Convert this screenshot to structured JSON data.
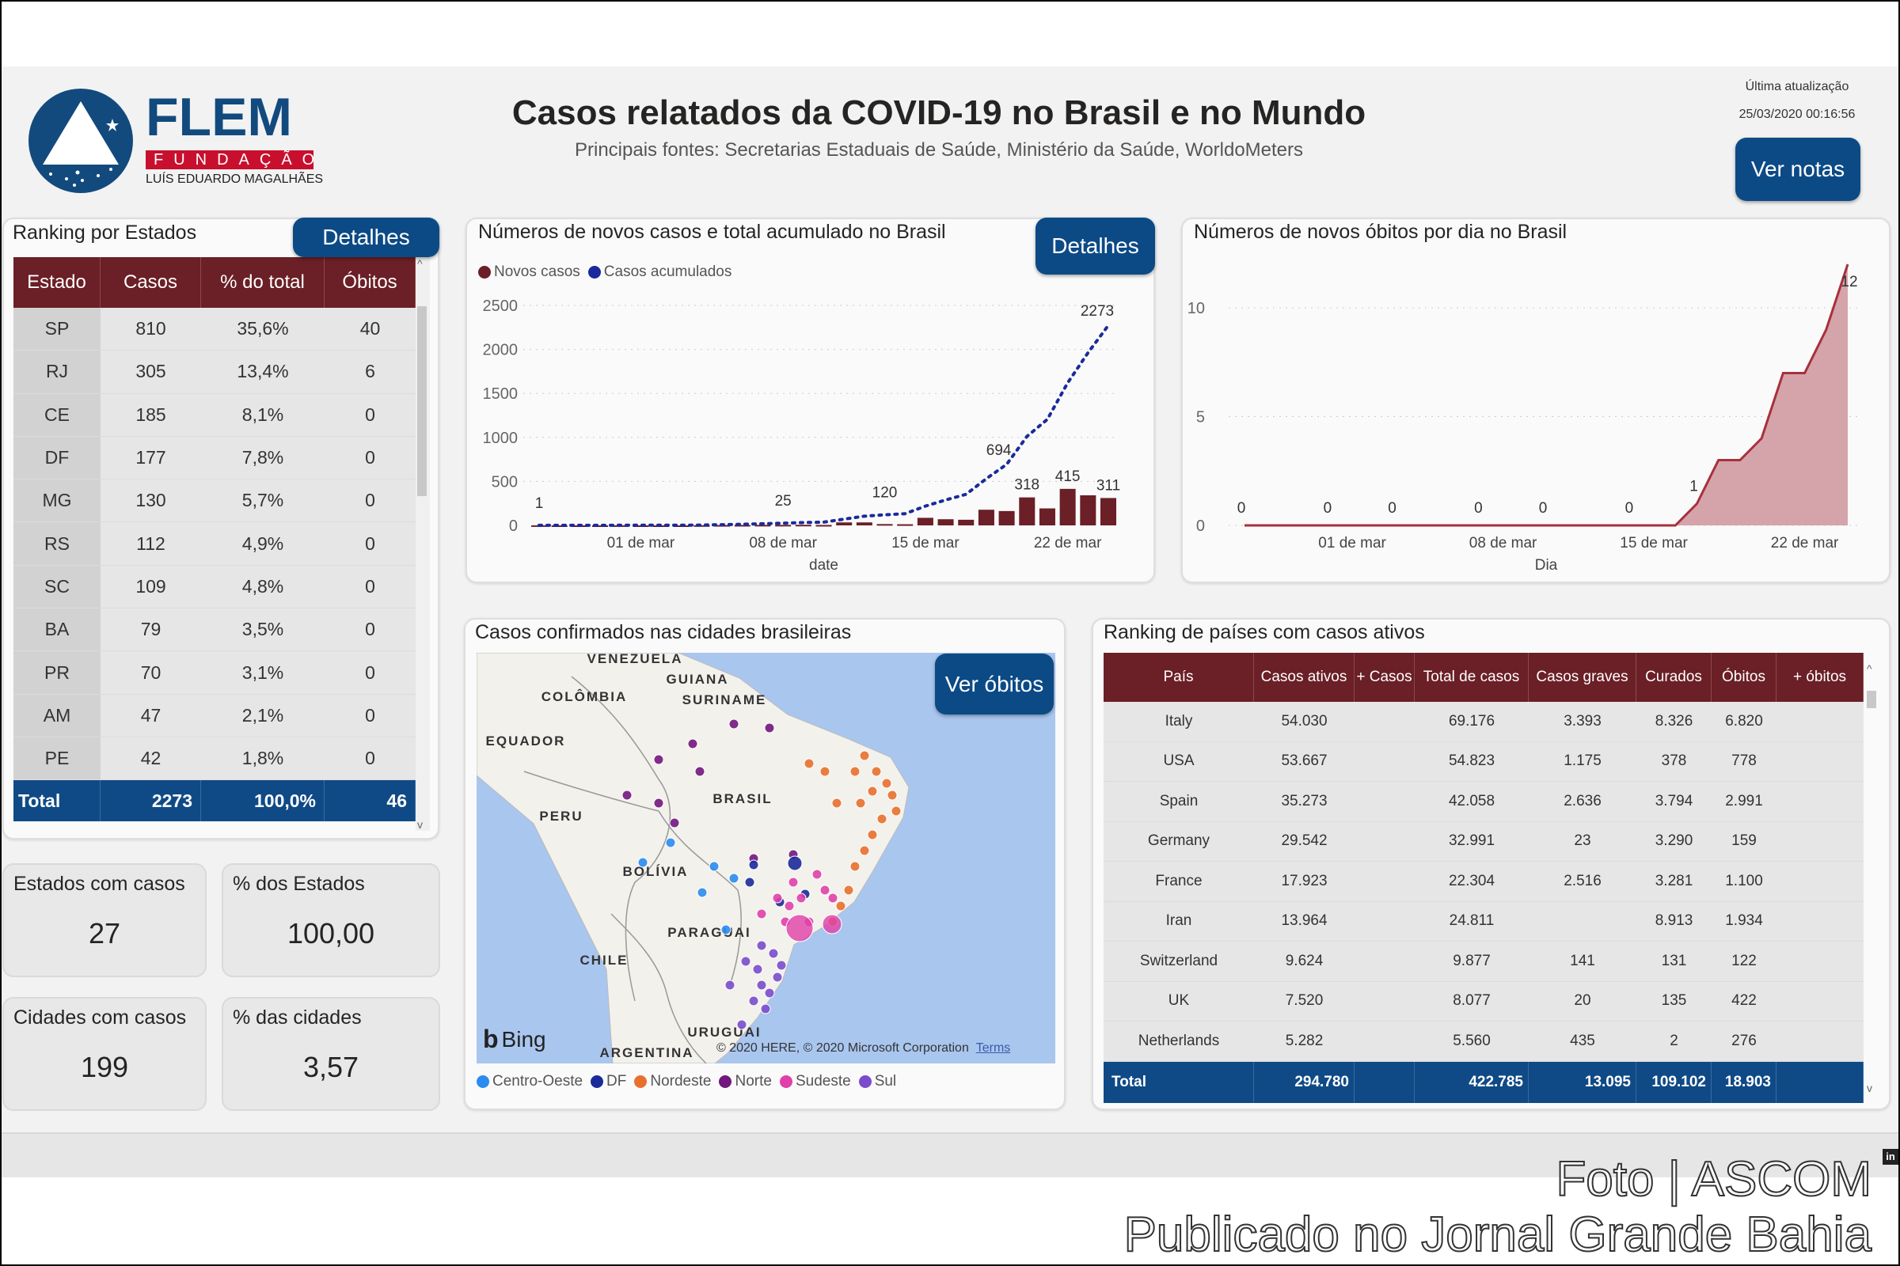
{
  "header": {
    "logo": {
      "name": "FLEM",
      "sub1": "FUNDAÇÃO",
      "sub2": "LUÍS EDUARDO MAGALHÃES"
    },
    "title": "Casos relatados da COVID-19 no Brasil e no Mundo",
    "subtitle": "Principais fontes: Secretarias Estaduais de Saúde, Ministério da Saúde, WorldoMeters",
    "last_update_label": "Última atualização",
    "last_update_value": "25/03/2020 00:16:56",
    "notes_button": "Ver notas"
  },
  "colors": {
    "header_red": "#6b1f26",
    "navy": "#0f4a86",
    "bar": "#6b1f26",
    "line": "#1a2a9c",
    "area": "#d4a4aa"
  },
  "states": {
    "title": "Ranking por Estados",
    "details_button": "Detalhes",
    "columns": [
      "Estado",
      "Casos",
      "% do total",
      "Óbitos"
    ],
    "rows": [
      [
        "SP",
        "810",
        "35,6%",
        "40"
      ],
      [
        "RJ",
        "305",
        "13,4%",
        "6"
      ],
      [
        "CE",
        "185",
        "8,1%",
        "0"
      ],
      [
        "DF",
        "177",
        "7,8%",
        "0"
      ],
      [
        "MG",
        "130",
        "5,7%",
        "0"
      ],
      [
        "RS",
        "112",
        "4,9%",
        "0"
      ],
      [
        "SC",
        "109",
        "4,8%",
        "0"
      ],
      [
        "BA",
        "79",
        "3,5%",
        "0"
      ],
      [
        "PR",
        "70",
        "3,1%",
        "0"
      ],
      [
        "AM",
        "47",
        "2,1%",
        "0"
      ],
      [
        "PE",
        "42",
        "1,8%",
        "0"
      ]
    ],
    "total": [
      "Total",
      "2273",
      "100,0%",
      "46"
    ]
  },
  "kpis": [
    {
      "label": "Estados com casos",
      "value": "27"
    },
    {
      "label": "% dos Estados",
      "value": "100,00"
    },
    {
      "label": "Cidades com casos",
      "value": "199"
    },
    {
      "label": "% das cidades",
      "value": "3,57"
    }
  ],
  "chart_data": [
    {
      "type": "bar+line",
      "title": "Números de novos casos e total acumulado no Brasil",
      "details_button": "Detalhes",
      "xlabel": "date",
      "ylabel": "",
      "legend": [
        "Novos casos",
        "Casos acumulados"
      ],
      "legend_position": "top-left",
      "grid": true,
      "ylim": [
        0,
        2500
      ],
      "yticks": [
        0,
        500,
        1000,
        1500,
        2000,
        2500
      ],
      "xtick_labels": [
        "01 de mar",
        "08 de mar",
        "15 de mar",
        "22 de mar"
      ],
      "x": [
        "25/02",
        "26/02",
        "27/02",
        "28/02",
        "29/02",
        "01/03",
        "02/03",
        "03/03",
        "04/03",
        "05/03",
        "06/03",
        "07/03",
        "08/03",
        "09/03",
        "10/03",
        "11/03",
        "12/03",
        "13/03",
        "14/03",
        "15/03",
        "16/03",
        "17/03",
        "18/03",
        "19/03",
        "20/03",
        "21/03",
        "22/03",
        "23/03",
        "24/03"
      ],
      "series": [
        {
          "name": "Novos casos",
          "values": [
            1,
            0,
            0,
            0,
            1,
            0,
            0,
            0,
            2,
            4,
            5,
            6,
            6,
            7,
            5,
            34,
            34,
            15,
            13,
            86,
            70,
            64,
            178,
            163,
            318,
            193,
            415,
            342,
            311
          ]
        },
        {
          "name": "Casos acumulados",
          "values": [
            1,
            1,
            1,
            1,
            2,
            2,
            2,
            2,
            4,
            8,
            13,
            19,
            25,
            32,
            37,
            71,
            105,
            120,
            133,
            219,
            289,
            353,
            531,
            694,
            1012,
            1205,
            1620,
            1962,
            2273
          ]
        }
      ],
      "data_labels": {
        "Casos acumulados": {
          "25/02": "1",
          "08/03": "25",
          "13/03": "120",
          "19/03": "694",
          "24/03": "2273"
        },
        "Novos casos": {
          "20/03": "318",
          "22/03": "415",
          "24/03": "311"
        }
      }
    },
    {
      "type": "area",
      "title": "Números de novos óbitos por dia no Brasil",
      "xlabel": "Dia",
      "ylabel": "",
      "grid": true,
      "ylim": [
        0,
        12
      ],
      "yticks": [
        0,
        5,
        10
      ],
      "xtick_labels": [
        "01 de mar",
        "08 de mar",
        "15 de mar",
        "22 de mar"
      ],
      "x": [
        "25/02",
        "26/02",
        "27/02",
        "28/02",
        "29/02",
        "01/03",
        "02/03",
        "03/03",
        "04/03",
        "05/03",
        "06/03",
        "07/03",
        "08/03",
        "09/03",
        "10/03",
        "11/03",
        "12/03",
        "13/03",
        "14/03",
        "15/03",
        "16/03",
        "17/03",
        "18/03",
        "19/03",
        "20/03",
        "21/03",
        "22/03",
        "23/03",
        "24/03"
      ],
      "series": [
        {
          "values": [
            0,
            0,
            0,
            0,
            0,
            0,
            0,
            0,
            0,
            0,
            0,
            0,
            0,
            0,
            0,
            0,
            0,
            0,
            0,
            0,
            0,
            1,
            3,
            3,
            4,
            7,
            7,
            9,
            12
          ]
        }
      ],
      "data_labels": {
        "25/02": "0",
        "29/02": "0",
        "03/03": "0",
        "07/03": "0",
        "10/03": "0",
        "14/03": "0",
        "17/03": "1",
        "24/03": "12"
      }
    }
  ],
  "map": {
    "title": "Casos confirmados nas cidades brasileiras",
    "button": "Ver óbitos",
    "place_labels": [
      "VENEZUELA",
      "GUIANA",
      "SURINAME",
      "COLÔMBIA",
      "EQUADOR",
      "BRASIL",
      "PERU",
      "BOLÍVIA",
      "PARAGUAI",
      "CHILE",
      "URUGUAI",
      "ARGENTINA"
    ],
    "bing": "Bing",
    "attribution": "© 2020 HERE, © 2020 Microsoft Corporation",
    "terms": "Terms",
    "legend": [
      {
        "label": "Centro-Oeste",
        "color": "#2a8cf0"
      },
      {
        "label": "DF",
        "color": "#1b2a9a"
      },
      {
        "label": "Nordeste",
        "color": "#e8702e"
      },
      {
        "label": "Norte",
        "color": "#72177e"
      },
      {
        "label": "Sudeste",
        "color": "#e040a8"
      },
      {
        "label": "Sul",
        "color": "#7a4ccc"
      }
    ]
  },
  "countries": {
    "title": "Ranking de países com casos ativos",
    "columns": [
      "País",
      "Casos ativos",
      "+ Casos",
      "Total de casos",
      "Casos graves",
      "Curados",
      "Óbitos",
      "+ óbitos"
    ],
    "rows": [
      [
        "Italy",
        "54.030",
        "",
        "69.176",
        "3.393",
        "8.326",
        "6.820",
        ""
      ],
      [
        "USA",
        "53.667",
        "",
        "54.823",
        "1.175",
        "378",
        "778",
        ""
      ],
      [
        "Spain",
        "35.273",
        "",
        "42.058",
        "2.636",
        "3.794",
        "2.991",
        ""
      ],
      [
        "Germany",
        "29.542",
        "",
        "32.991",
        "23",
        "3.290",
        "159",
        ""
      ],
      [
        "France",
        "17.923",
        "",
        "22.304",
        "2.516",
        "3.281",
        "1.100",
        ""
      ],
      [
        "Iran",
        "13.964",
        "",
        "24.811",
        "",
        "8.913",
        "1.934",
        ""
      ],
      [
        "Switzerland",
        "9.624",
        "",
        "9.877",
        "141",
        "131",
        "122",
        ""
      ],
      [
        "UK",
        "7.520",
        "",
        "8.077",
        "20",
        "135",
        "422",
        ""
      ],
      [
        "Netherlands",
        "5.282",
        "",
        "5.560",
        "435",
        "2",
        "276",
        ""
      ]
    ],
    "total": [
      "Total",
      "294.780",
      "",
      "422.785",
      "13.095",
      "109.102",
      "18.903",
      ""
    ]
  },
  "watermark": {
    "line1": "Foto | ASCOM",
    "line2": "Publicado no Jornal Grande Bahia"
  }
}
